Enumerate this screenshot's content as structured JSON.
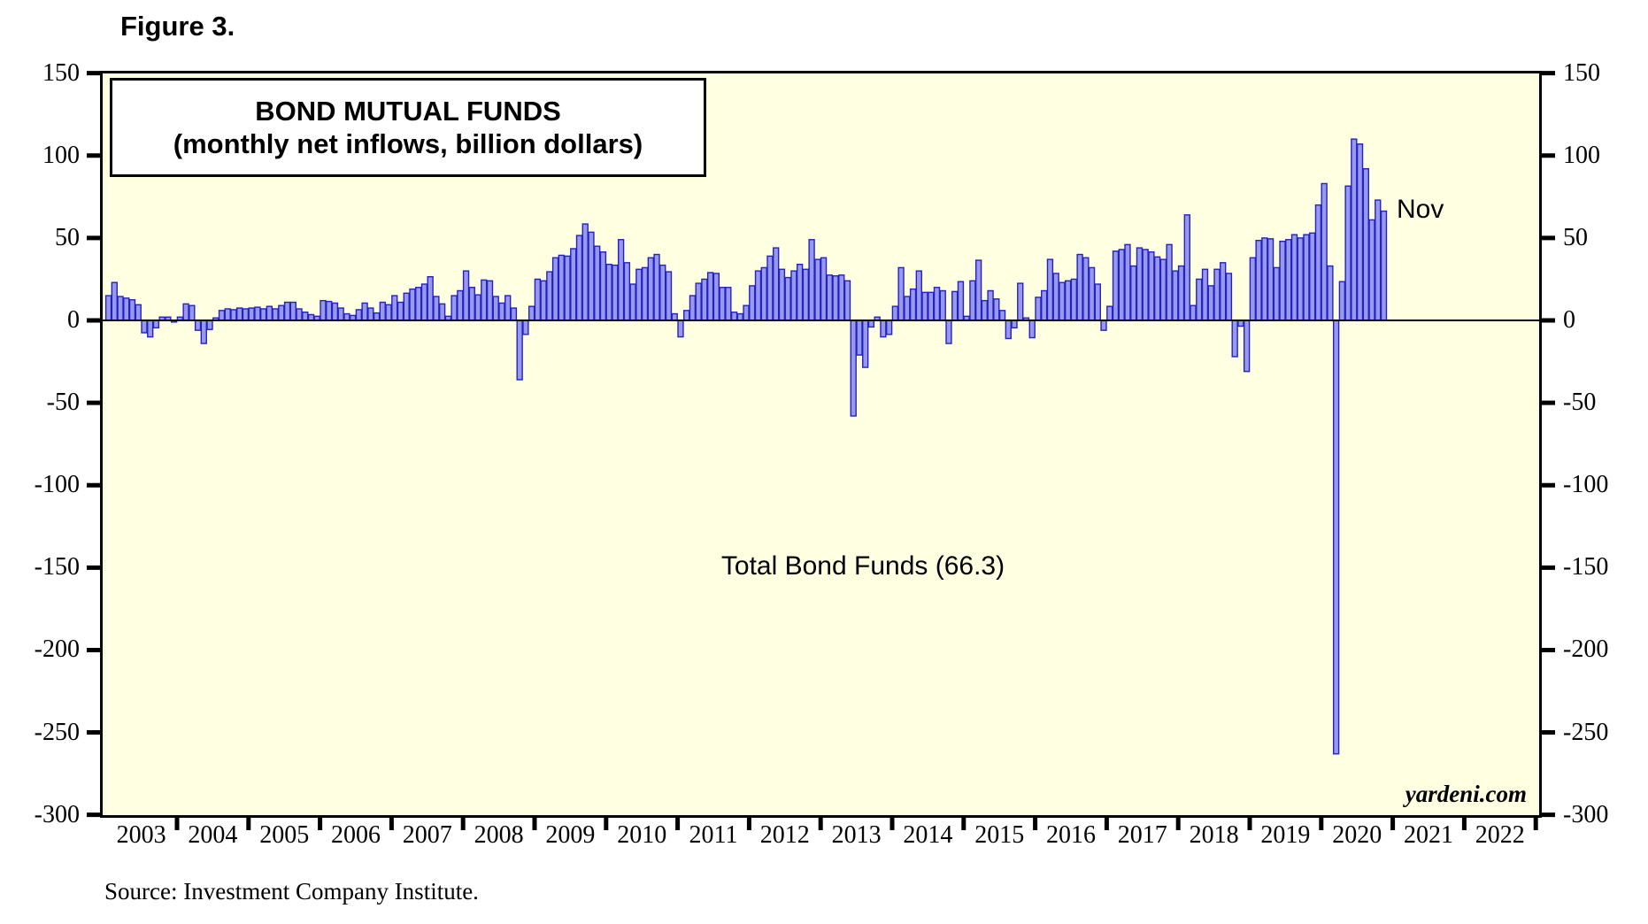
{
  "figure_label": "Figure 3.",
  "title_line1": "BOND MUTUAL FUNDS",
  "title_line2": "(monthly net inflows, billion dollars)",
  "series_label": "Total Bond Funds (66.3)",
  "last_point_label": "Nov",
  "watermark": "yardeni.com",
  "source_note": "Source: Investment Company Institute.",
  "colors": {
    "plot_background": "#FFFFE1",
    "bar_fill": "#9898EC",
    "bar_stroke": "#2222C4",
    "axis": "#000000"
  },
  "chart_data": {
    "type": "bar",
    "title": "BOND MUTUAL FUNDS (monthly net inflows, billion dollars)",
    "xlabel": "",
    "ylabel": "billion dollars",
    "ylim": [
      -300,
      150
    ],
    "yticks": [
      150,
      100,
      50,
      0,
      -50,
      -100,
      -150,
      -200,
      -250,
      -300
    ],
    "x_axis_years": [
      2003,
      2004,
      2005,
      2006,
      2007,
      2008,
      2009,
      2010,
      2011,
      2012,
      2013,
      2014,
      2015,
      2016,
      2017,
      2018,
      2019,
      2020,
      2021,
      2022
    ],
    "start_month": "2003-01",
    "end_month": "2020-11",
    "last_value_annotation": {
      "label": "Nov",
      "value": 66.3
    },
    "grid": false,
    "legend_position": "none",
    "monthly_series": [
      {
        "year": 2003,
        "values": [
          15,
          23,
          14.5,
          13.5,
          12.5,
          9.5,
          -7.5,
          -10,
          -4.5,
          2,
          2,
          -1
        ]
      },
      {
        "year": 2004,
        "values": [
          2,
          10,
          9,
          -6,
          -14,
          -5.5,
          1.5,
          6,
          7,
          6.5,
          7.5,
          7
        ]
      },
      {
        "year": 2005,
        "values": [
          7.5,
          8,
          7,
          8.5,
          7,
          9,
          11,
          11,
          7,
          5,
          3.5,
          2.5
        ]
      },
      {
        "year": 2006,
        "values": [
          12,
          11.5,
          10.5,
          7.5,
          4,
          3,
          6.5,
          10.5,
          7.5,
          4.5,
          11,
          9.5
        ]
      },
      {
        "year": 2007,
        "values": [
          15,
          11,
          16.5,
          19,
          20,
          22,
          26.5,
          14.5,
          10,
          2.5,
          15,
          18
        ]
      },
      {
        "year": 2008,
        "values": [
          30,
          20,
          15.5,
          24.5,
          24,
          14.5,
          10.5,
          15,
          7.5,
          -36,
          -8.5,
          8.5
        ]
      },
      {
        "year": 2009,
        "values": [
          25,
          24,
          29.5,
          38,
          39.5,
          39,
          43.5,
          51.5,
          58.5,
          53.5,
          45,
          41.5
        ]
      },
      {
        "year": 2010,
        "values": [
          34,
          33.5,
          49,
          35,
          22,
          31,
          32,
          38,
          40,
          33.5,
          29.5,
          4
        ]
      },
      {
        "year": 2011,
        "values": [
          -10,
          6,
          15,
          22.5,
          25,
          29,
          28.5,
          20,
          20,
          5,
          4,
          9
        ]
      },
      {
        "year": 2012,
        "values": [
          21,
          30,
          32,
          39,
          44,
          31,
          26,
          30,
          34,
          31,
          49,
          37
        ]
      },
      {
        "year": 2013,
        "values": [
          38,
          27.5,
          27,
          27.5,
          24,
          -58,
          -21,
          -28.5,
          -4,
          2,
          -10,
          -8.5
        ]
      },
      {
        "year": 2014,
        "values": [
          8.5,
          32,
          14.5,
          19,
          30,
          17,
          17,
          20,
          18,
          -14,
          17.5,
          23.5
        ]
      },
      {
        "year": 2015,
        "values": [
          2.5,
          24,
          36.5,
          12,
          18,
          13,
          6,
          -11,
          -4.5,
          22.5,
          1.5,
          -10.5
        ]
      },
      {
        "year": 2016,
        "values": [
          14,
          18,
          37,
          28.5,
          23,
          24,
          25,
          40,
          38,
          32,
          22,
          -6
        ]
      },
      {
        "year": 2017,
        "values": [
          8.5,
          42,
          43,
          46,
          33,
          44,
          43,
          41.5,
          38.5,
          37,
          46,
          30
        ]
      },
      {
        "year": 2018,
        "values": [
          33,
          64,
          9,
          25,
          31,
          21,
          31,
          35,
          28.5,
          -22,
          -3.5,
          -31
        ]
      },
      {
        "year": 2019,
        "values": [
          38,
          48.5,
          50,
          49.5,
          32,
          48,
          49,
          52,
          50,
          52,
          53,
          70
        ]
      },
      {
        "year": 2020,
        "values": [
          83,
          33,
          -263,
          23.5,
          81.5,
          110,
          107,
          92,
          61,
          73,
          66.3
        ]
      }
    ]
  }
}
